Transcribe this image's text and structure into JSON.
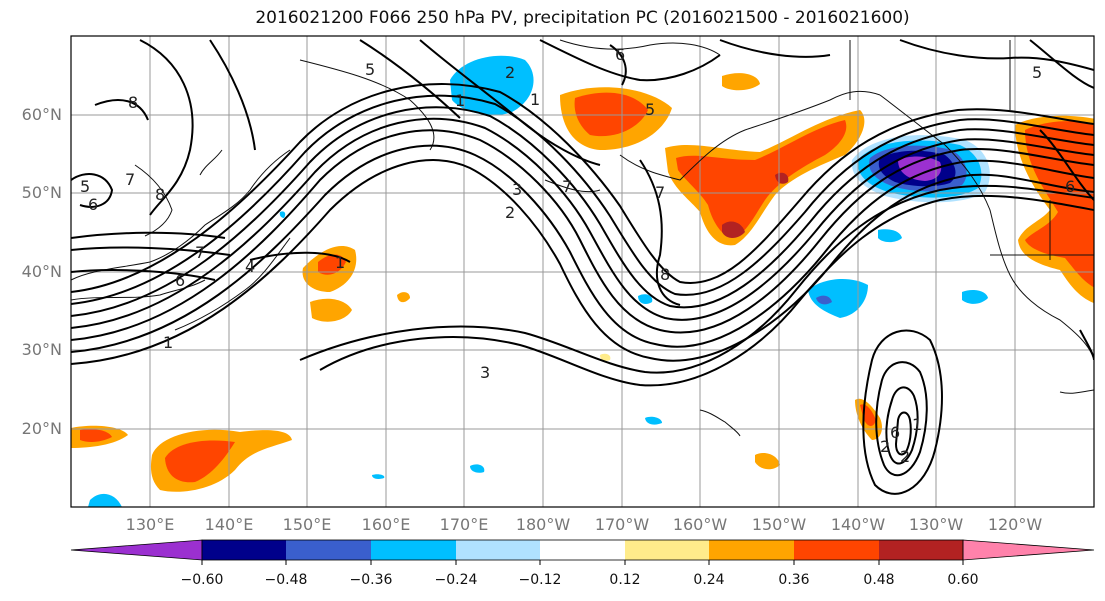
{
  "title": "2016021200 F066 250 hPa PV, precipitation PC (2016021500 - 2016021600)",
  "lat_labels": [
    "60°N",
    "50°N",
    "40°N",
    "30°N",
    "20°N"
  ],
  "lon_labels": [
    "130°E",
    "140°E",
    "150°E",
    "160°E",
    "170°E",
    "180°W",
    "170°W",
    "160°W",
    "150°W",
    "140°W",
    "130°W",
    "120°W"
  ],
  "colorbar": {
    "ticks": [
      "−0.60",
      "−0.48",
      "−0.36",
      "−0.24",
      "−0.12",
      "0.12",
      "0.24",
      "0.36",
      "0.48",
      "0.60"
    ],
    "colors": [
      "#9b30d0",
      "#00008b",
      "#3a5fcd",
      "#00bfff",
      "#b0e2ff",
      "#ffffff",
      "#ffec8b",
      "#ffa500",
      "#ff4500",
      "#b22222",
      "#ff82ab"
    ]
  },
  "contour_labels": [
    "5",
    "6",
    "8",
    "2",
    "1",
    "6",
    "5",
    "5",
    "8",
    "6",
    "5",
    "7",
    "6",
    "1",
    "1",
    "7",
    "2",
    "3",
    "1",
    "7",
    "8",
    "7",
    "3",
    "2",
    "6",
    "2",
    "1",
    "4"
  ],
  "colors": {
    "pos_light": "#ffec8b",
    "pos_mid": "#ffa500",
    "pos_strong": "#ff4500",
    "pos_max": "#b22222",
    "neg_light": "#b0e2ff",
    "neg_mid": "#00bfff",
    "neg_strong": "#3a5fcd",
    "neg_deep": "#00008b",
    "neg_max": "#9b30d0"
  }
}
